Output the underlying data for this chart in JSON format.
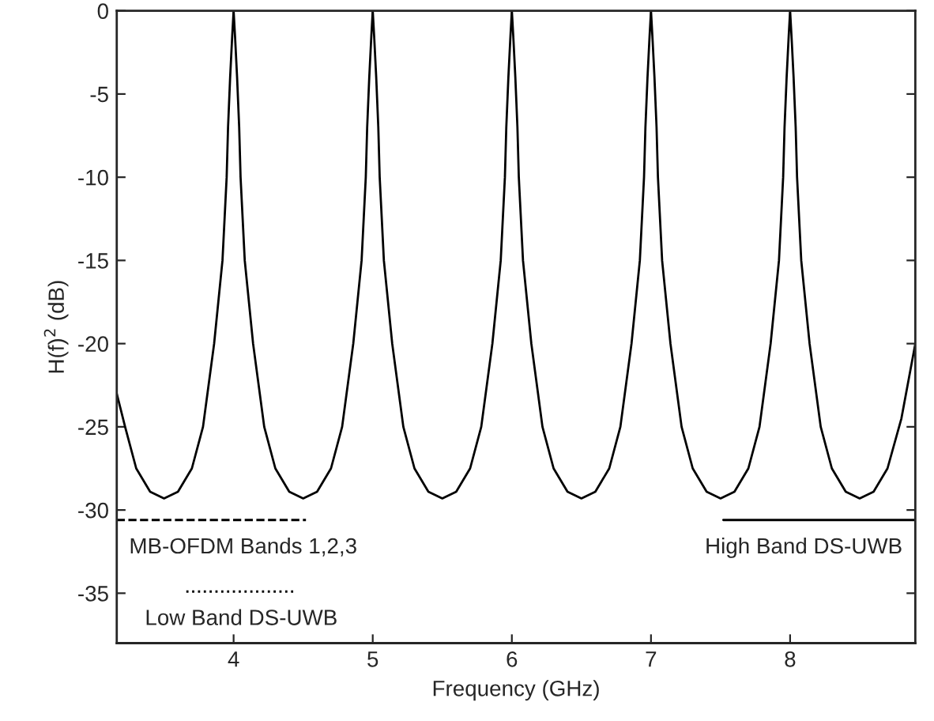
{
  "chart_data": {
    "type": "line",
    "xlabel": "Frequency (GHz)",
    "ylabel": "H(f)$^{2}$ (dB)",
    "xlim": [
      3.16,
      8.9
    ],
    "ylim": [
      -38,
      0
    ],
    "xticks": [
      4,
      5,
      6,
      7,
      8
    ],
    "yticks": [
      0,
      -5,
      -10,
      -15,
      -20,
      -25,
      -30,
      -35
    ],
    "grid": false,
    "series": [
      {
        "color": "#000000",
        "line_style": "solid",
        "x": [
          3.16,
          3.22,
          3.3,
          3.4,
          3.5,
          3.6,
          3.7,
          3.78,
          3.86,
          3.92,
          3.95,
          3.96,
          3.975,
          3.99,
          4,
          4.01,
          4.025,
          4.04,
          4.05,
          4.08,
          4.14,
          4.22,
          4.3,
          4.4,
          4.5,
          4.6,
          4.7,
          4.78,
          4.86,
          4.92,
          4.95,
          4.96,
          4.975,
          4.99,
          5,
          5.01,
          5.025,
          5.04,
          5.05,
          5.08,
          5.14,
          5.22,
          5.3,
          5.4,
          5.5,
          5.6,
          5.7,
          5.78,
          5.86,
          5.92,
          5.95,
          5.96,
          5.975,
          5.99,
          6,
          6.01,
          6.025,
          6.04,
          6.05,
          6.08,
          6.14,
          6.22,
          6.3,
          6.4,
          6.5,
          6.6,
          6.7,
          6.78,
          6.86,
          6.92,
          6.95,
          6.96,
          6.975,
          6.99,
          7,
          7.01,
          7.025,
          7.04,
          7.05,
          7.08,
          7.14,
          7.22,
          7.3,
          7.4,
          7.5,
          7.6,
          7.7,
          7.78,
          7.86,
          7.92,
          7.95,
          7.96,
          7.975,
          7.99,
          8,
          8.01,
          8.025,
          8.04,
          8.05,
          8.08,
          8.14,
          8.22,
          8.3,
          8.4,
          8.5,
          8.6,
          8.7,
          8.8,
          8.9
        ],
        "values": [
          -23,
          -25,
          -27.5,
          -28.9,
          -29.3,
          -28.9,
          -27.5,
          -25,
          -20,
          -15,
          -10,
          -7,
          -4,
          -1.5,
          0,
          -1.5,
          -4,
          -7,
          -10,
          -15,
          -20,
          -25,
          -27.5,
          -28.9,
          -29.3,
          -28.9,
          -27.5,
          -25,
          -20,
          -15,
          -10,
          -7,
          -4,
          -1.5,
          0,
          -1.5,
          -4,
          -7,
          -10,
          -15,
          -20,
          -25,
          -27.5,
          -28.9,
          -29.3,
          -28.9,
          -27.5,
          -25,
          -20,
          -15,
          -10,
          -7,
          -4,
          -1.5,
          0,
          -1.5,
          -4,
          -7,
          -10,
          -15,
          -20,
          -25,
          -27.5,
          -28.9,
          -29.3,
          -28.9,
          -27.5,
          -25,
          -20,
          -15,
          -10,
          -7,
          -4,
          -1.5,
          0,
          -1.5,
          -4,
          -7,
          -10,
          -15,
          -20,
          -25,
          -27.5,
          -28.9,
          -29.3,
          -28.9,
          -27.5,
          -25,
          -20,
          -15,
          -10,
          -7,
          -4,
          -1.5,
          0,
          -1.5,
          -4,
          -7,
          -10,
          -15,
          -20,
          -25,
          -27.5,
          -28.9,
          -29.3,
          -28.9,
          -27.5,
          -24.5,
          -20
        ]
      },
      {
        "name": "MB-OFDM Bands 1,2,3",
        "color": "#000000",
        "line_style": "dashed",
        "x": [
          3.16,
          4.52
        ],
        "values": [
          -30.6,
          -30.6
        ]
      },
      {
        "name": "Low Band DS-UWB",
        "color": "#000000",
        "line_style": "dotted",
        "x": [
          3.66,
          4.45
        ],
        "values": [
          -34.9,
          -34.9
        ]
      },
      {
        "name": "High Band DS-UWB",
        "color": "#000000",
        "line_style": "solid",
        "x": [
          7.52,
          8.9
        ],
        "values": [
          -30.6,
          -30.6
        ]
      }
    ]
  }
}
